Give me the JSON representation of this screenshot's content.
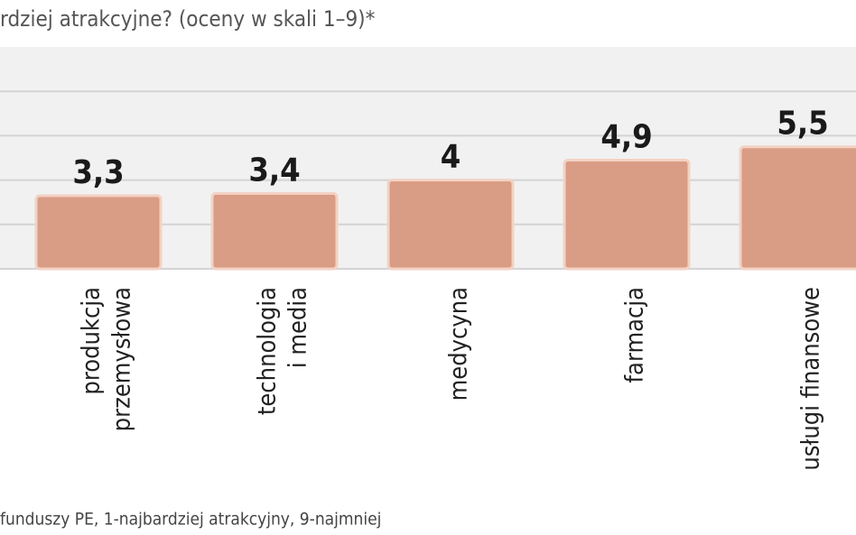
{
  "chart_data": {
    "type": "bar",
    "title": "rdziej atrakcyjne? (oceny w skali 1–9)*",
    "footnote": "funduszy PE, 1-najbardziej atrakcyjny, 9-najmniej",
    "categories": [
      [
        "produkcja",
        "przemysłowa"
      ],
      [
        "technologia",
        "i media"
      ],
      [
        "medycyna"
      ],
      [
        "farmacja"
      ],
      [
        "usługi finansowe"
      ]
    ],
    "values": [
      3.3,
      3.4,
      4,
      4.9,
      5.5
    ],
    "value_labels": [
      "3,3",
      "3,4",
      "4",
      "4,9",
      "5,5"
    ],
    "color": "#d99c84",
    "ylim": [
      0,
      10
    ],
    "yticks": [
      0,
      2,
      4,
      6,
      8
    ],
    "grid": true
  }
}
